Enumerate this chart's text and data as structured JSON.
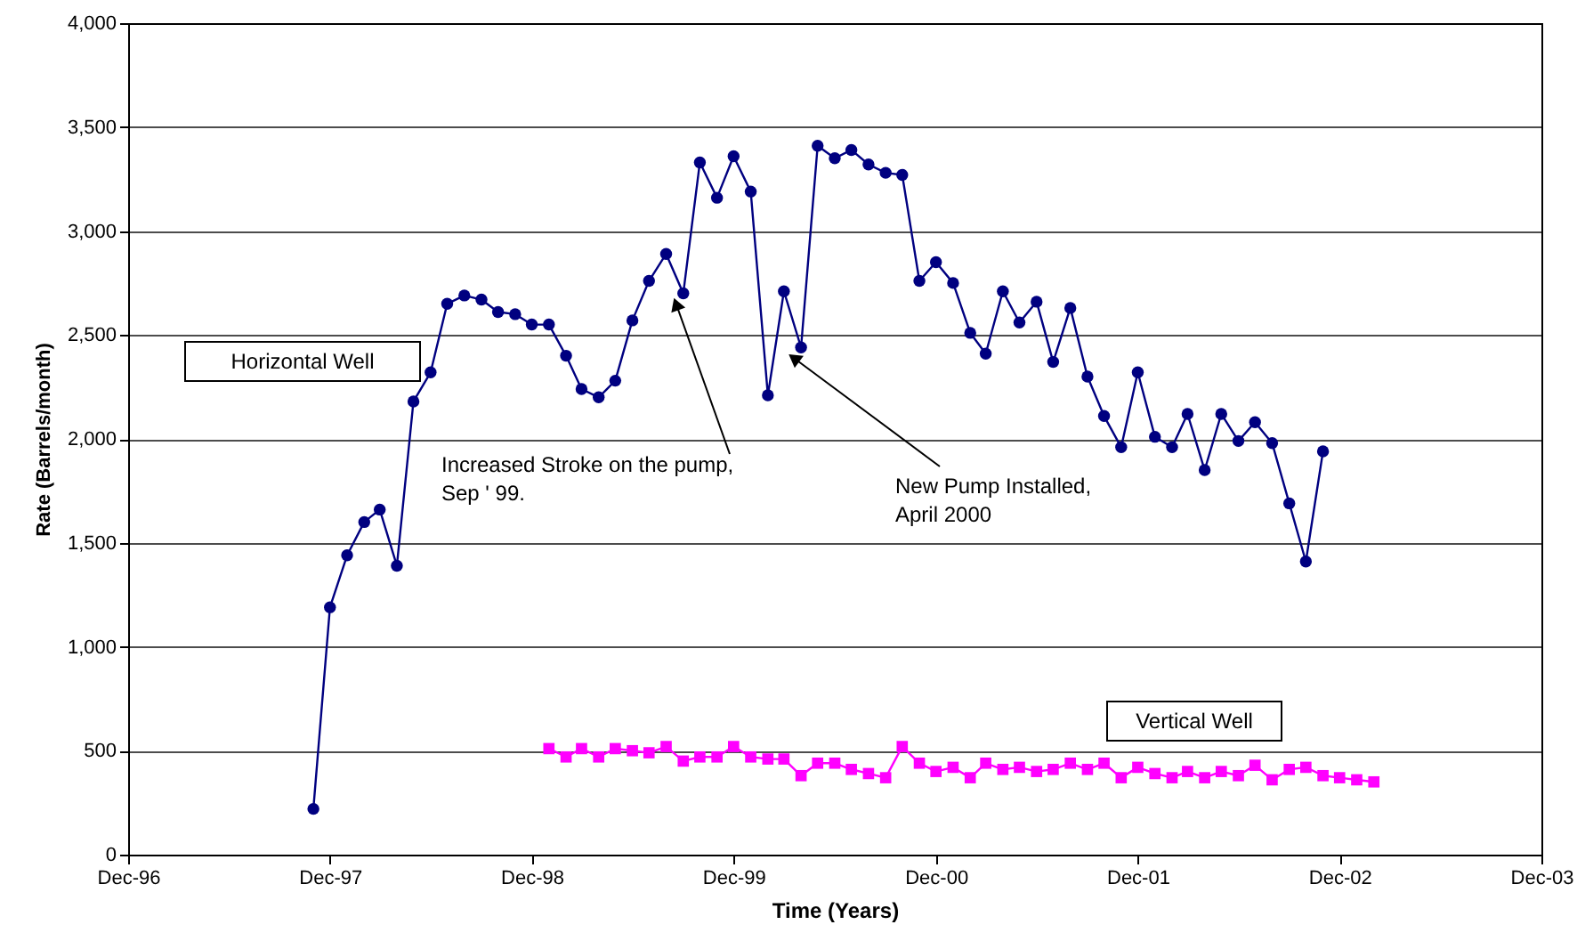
{
  "chart_data": {
    "type": "line",
    "xlabel": "Time (Years)",
    "ylabel": "Rate (Barrels/month)",
    "xlim": [
      "1996-12",
      "2003-12"
    ],
    "xticks": [
      {
        "value": "1996-12",
        "label": "Dec-96"
      },
      {
        "value": "1997-12",
        "label": "Dec-97"
      },
      {
        "value": "1998-12",
        "label": "Dec-98"
      },
      {
        "value": "1999-12",
        "label": "Dec-99"
      },
      {
        "value": "2000-12",
        "label": "Dec-00"
      },
      {
        "value": "2001-12",
        "label": "Dec-01"
      },
      {
        "value": "2002-12",
        "label": "Dec-02"
      },
      {
        "value": "2003-12",
        "label": "Dec-03"
      }
    ],
    "ylim": [
      0,
      4000
    ],
    "yticks": [
      0,
      {
        "value": 500,
        "label": "500"
      },
      {
        "value": 1000,
        "label": "1,000"
      },
      {
        "value": 1500,
        "label": "1,500"
      },
      {
        "value": 2000,
        "label": "2,000"
      },
      {
        "value": 2500,
        "label": "2,500"
      },
      {
        "value": 3000,
        "label": "3,000"
      },
      {
        "value": 3500,
        "label": "3,500"
      },
      {
        "value": 4000,
        "label": "4,000"
      }
    ],
    "grid": "y",
    "legend": false,
    "series": [
      {
        "name": "Horizontal Well",
        "color": "#000080",
        "marker": "circle",
        "x": [
          "1997-11",
          "1997-12",
          "1998-01",
          "1998-02",
          "1998-03",
          "1998-04",
          "1998-05",
          "1998-06",
          "1998-07",
          "1998-08",
          "1998-09",
          "1998-10",
          "1998-11",
          "1998-12",
          "1999-01",
          "1999-02",
          "1999-03",
          "1999-04",
          "1999-05",
          "1999-06",
          "1999-07",
          "1999-08",
          "1999-09",
          "1999-10",
          "1999-11",
          "1999-12",
          "2000-01",
          "2000-02",
          "2000-03",
          "2000-04",
          "2000-05",
          "2000-06",
          "2000-07",
          "2000-08",
          "2000-09",
          "2000-10",
          "2000-11",
          "2000-12",
          "2001-01",
          "2001-02",
          "2001-03",
          "2001-04",
          "2001-05",
          "2001-06",
          "2001-07",
          "2001-08",
          "2001-09",
          "2001-10",
          "2001-11",
          "2001-12",
          "2002-01",
          "2002-02",
          "2002-03",
          "2002-04",
          "2002-05",
          "2002-06",
          "2002-07",
          "2002-08",
          "2002-09",
          "2002-10",
          "2002-11"
        ],
        "values": [
          220,
          1190,
          1440,
          1600,
          1660,
          1390,
          2180,
          2320,
          2650,
          2690,
          2670,
          2610,
          2600,
          2550,
          2550,
          2400,
          2240,
          2200,
          2280,
          2570,
          2760,
          2890,
          2700,
          3330,
          3160,
          3360,
          3190,
          2210,
          2710,
          2440,
          3410,
          3350,
          3390,
          3320,
          3280,
          3270,
          2760,
          2850,
          2750,
          2510,
          2410,
          2710,
          2560,
          2660,
          2370,
          2630,
          2300,
          2110,
          1960,
          2320,
          2010,
          1960,
          2120,
          1850,
          2120,
          1990,
          2080,
          1980,
          1690,
          1410,
          1940
        ]
      },
      {
        "name": "Vertical Well",
        "color": "#ff00ff",
        "marker": "square",
        "x": [
          "1999-01",
          "1999-02",
          "1999-03",
          "1999-04",
          "1999-05",
          "1999-06",
          "1999-07",
          "1999-08",
          "1999-09",
          "1999-10",
          "1999-11",
          "1999-12",
          "2000-01",
          "2000-02",
          "2000-03",
          "2000-04",
          "2000-05",
          "2000-06",
          "2000-07",
          "2000-08",
          "2000-09",
          "2000-10",
          "2000-11",
          "2000-12",
          "2001-01",
          "2001-02",
          "2001-03",
          "2001-04",
          "2001-05",
          "2001-06",
          "2001-07",
          "2001-08",
          "2001-09",
          "2001-10",
          "2001-11",
          "2001-12",
          "2002-01",
          "2002-02",
          "2002-03",
          "2002-04",
          "2002-05",
          "2002-06",
          "2002-07",
          "2002-08",
          "2002-09",
          "2002-10",
          "2002-11",
          "2002-12",
          "2003-01",
          "2003-02"
        ],
        "values": [
          510,
          470,
          510,
          470,
          510,
          500,
          490,
          520,
          450,
          470,
          470,
          520,
          470,
          460,
          460,
          380,
          440,
          440,
          410,
          390,
          370,
          520,
          440,
          400,
          420,
          370,
          440,
          410,
          420,
          400,
          410,
          440,
          410,
          440,
          370,
          420,
          390,
          370,
          400,
          370,
          400,
          380,
          430,
          360,
          410,
          420,
          380,
          370,
          360,
          350
        ]
      }
    ],
    "annotations": [
      {
        "text": "Increased Stroke on the pump,\n Sep ' 99.",
        "x": "1999-09",
        "y": 2700
      },
      {
        "text": "New Pump Installed,\nApril 2000",
        "x": "2000-04",
        "y": 2440
      }
    ]
  }
}
